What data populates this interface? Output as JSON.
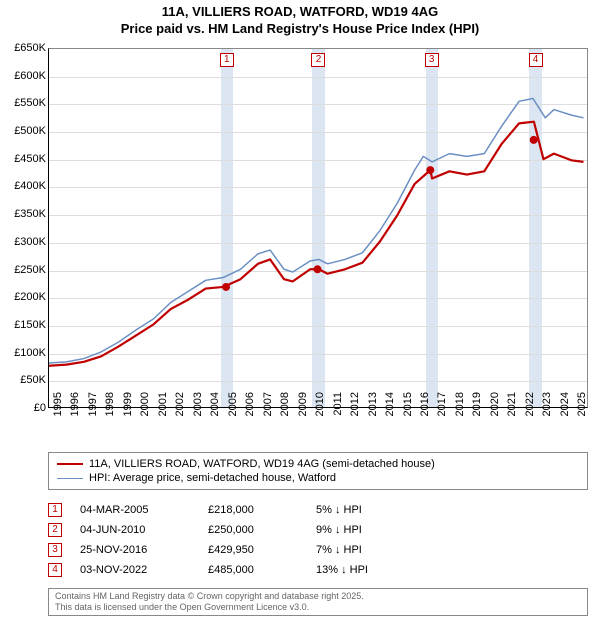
{
  "title_line1": "11A, VILLIERS ROAD, WATFORD, WD19 4AG",
  "title_line2": "Price paid vs. HM Land Registry's House Price Index (HPI)",
  "chart": {
    "type": "line",
    "background_color": "#ffffff",
    "grid_color": "#dddddd",
    "x_years": [
      1995,
      1996,
      1997,
      1998,
      1999,
      2000,
      2001,
      2002,
      2003,
      2004,
      2005,
      2006,
      2007,
      2008,
      2009,
      2010,
      2011,
      2012,
      2013,
      2014,
      2015,
      2016,
      2017,
      2018,
      2019,
      2020,
      2021,
      2022,
      2023,
      2024,
      2025
    ],
    "xlim": [
      1995,
      2025.9
    ],
    "ylim": [
      0,
      650
    ],
    "ytick_step": 50,
    "ytick_prefix": "£",
    "ytick_suffix": "K",
    "series": [
      {
        "name": "hpi",
        "label": "HPI: Average price, semi-detached house, Watford",
        "color": "#6a8fc3",
        "width": 1.5,
        "points": [
          [
            1995,
            80
          ],
          [
            1996,
            82
          ],
          [
            1997,
            88
          ],
          [
            1998,
            100
          ],
          [
            1999,
            118
          ],
          [
            2000,
            140
          ],
          [
            2001,
            160
          ],
          [
            2002,
            190
          ],
          [
            2003,
            210
          ],
          [
            2004,
            230
          ],
          [
            2005,
            235
          ],
          [
            2006,
            250
          ],
          [
            2007,
            278
          ],
          [
            2007.7,
            285
          ],
          [
            2008.5,
            250
          ],
          [
            2009,
            245
          ],
          [
            2010,
            265
          ],
          [
            2010.5,
            268
          ],
          [
            2011,
            260
          ],
          [
            2012,
            268
          ],
          [
            2013,
            280
          ],
          [
            2014,
            320
          ],
          [
            2015,
            370
          ],
          [
            2016,
            430
          ],
          [
            2016.5,
            455
          ],
          [
            2017,
            445
          ],
          [
            2018,
            460
          ],
          [
            2019,
            455
          ],
          [
            2020,
            460
          ],
          [
            2021,
            510
          ],
          [
            2022,
            555
          ],
          [
            2022.8,
            560
          ],
          [
            2023.5,
            525
          ],
          [
            2024,
            540
          ],
          [
            2025,
            530
          ],
          [
            2025.7,
            525
          ]
        ]
      },
      {
        "name": "price_paid",
        "label": "11A, VILLIERS ROAD, WATFORD, WD19 4AG (semi-detached house)",
        "color": "#c00000",
        "width": 2.2,
        "points": [
          [
            1995,
            75
          ],
          [
            1996,
            77
          ],
          [
            1997,
            82
          ],
          [
            1998,
            92
          ],
          [
            1999,
            110
          ],
          [
            2000,
            130
          ],
          [
            2001,
            150
          ],
          [
            2002,
            178
          ],
          [
            2003,
            195
          ],
          [
            2004,
            215
          ],
          [
            2005,
            218
          ],
          [
            2006,
            232
          ],
          [
            2007,
            260
          ],
          [
            2007.7,
            268
          ],
          [
            2008.5,
            232
          ],
          [
            2009,
            228
          ],
          [
            2010,
            250
          ],
          [
            2010.5,
            250
          ],
          [
            2011,
            242
          ],
          [
            2012,
            250
          ],
          [
            2013,
            262
          ],
          [
            2014,
            300
          ],
          [
            2015,
            348
          ],
          [
            2016,
            405
          ],
          [
            2016.9,
            430
          ],
          [
            2017,
            415
          ],
          [
            2018,
            428
          ],
          [
            2019,
            422
          ],
          [
            2020,
            428
          ],
          [
            2021,
            478
          ],
          [
            2022,
            515
          ],
          [
            2022.85,
            518
          ],
          [
            2023.4,
            450
          ],
          [
            2024,
            460
          ],
          [
            2025,
            448
          ],
          [
            2025.7,
            445
          ]
        ]
      }
    ],
    "event_bands": [
      {
        "x": 2005.17,
        "half_width_years": 0.35
      },
      {
        "x": 2010.42,
        "half_width_years": 0.35
      },
      {
        "x": 2016.9,
        "half_width_years": 0.35
      },
      {
        "x": 2022.84,
        "half_width_years": 0.35
      }
    ],
    "event_band_color": "#dbe6f2",
    "sale_markers": [
      {
        "x": 2005.17,
        "y": 218
      },
      {
        "x": 2010.42,
        "y": 250
      },
      {
        "x": 2016.9,
        "y": 430
      },
      {
        "x": 2022.84,
        "y": 485
      }
    ],
    "marker_color": "#c00000",
    "marker_radius": 4
  },
  "legend": {
    "items": [
      {
        "color": "#c00000",
        "width": 2.5,
        "label": "11A, VILLIERS ROAD, WATFORD, WD19 4AG (semi-detached house)"
      },
      {
        "color": "#6a8fc3",
        "width": 1.5,
        "label": "HPI: Average price, semi-detached house, Watford"
      }
    ]
  },
  "events": [
    {
      "n": "1",
      "date": "04-MAR-2005",
      "price": "£218,000",
      "diff": "5% ↓ HPI"
    },
    {
      "n": "2",
      "date": "04-JUN-2010",
      "price": "£250,000",
      "diff": "9% ↓ HPI"
    },
    {
      "n": "3",
      "date": "25-NOV-2016",
      "price": "£429,950",
      "diff": "7% ↓ HPI"
    },
    {
      "n": "4",
      "date": "03-NOV-2022",
      "price": "£485,000",
      "diff": "13% ↓ HPI"
    }
  ],
  "footer_line1": "Contains HM Land Registry data © Crown copyright and database right 2025.",
  "footer_line2": "This data is licensed under the Open Government Licence v3.0."
}
